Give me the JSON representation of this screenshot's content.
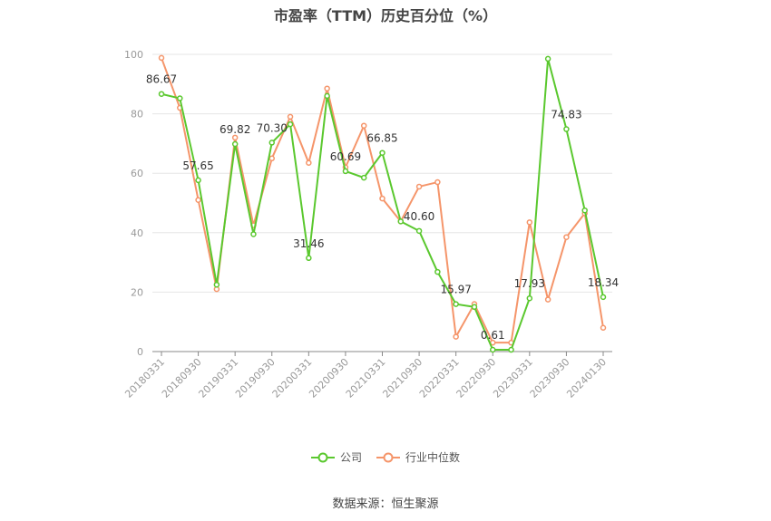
{
  "chart_data": {
    "type": "line",
    "title": "市盈率（TTM）历史百分位（%）",
    "xlabel": "",
    "ylabel": "",
    "ylim": [
      0,
      100
    ],
    "yticks": [
      0,
      20,
      40,
      60,
      80,
      100
    ],
    "grid": true,
    "legend_position": "bottom",
    "x": [
      "20180331",
      "20180630",
      "20180930",
      "20181231",
      "20190331",
      "20190630",
      "20190930",
      "20191231",
      "20200331",
      "20200630",
      "20200930",
      "20201231",
      "20210331",
      "20210630",
      "20210930",
      "20211231",
      "20220331",
      "20220630",
      "20220930",
      "20221231",
      "20230331",
      "20230630",
      "20230930",
      "20231231",
      "20240130"
    ],
    "x_tick_labels": [
      "20180331",
      "20180930",
      "20190331",
      "20190930",
      "20200331",
      "20200930",
      "20210331",
      "20210930",
      "20220331",
      "20220930",
      "20230331",
      "20230930",
      "20240130"
    ],
    "series": [
      {
        "name": "公司",
        "color": "#5ac82e",
        "values": [
          86.67,
          85.2,
          57.65,
          22.5,
          69.82,
          39.5,
          70.3,
          76.5,
          31.46,
          86.0,
          60.69,
          58.5,
          66.85,
          43.8,
          40.6,
          26.8,
          15.97,
          15.0,
          0.61,
          0.6,
          17.93,
          98.5,
          74.83,
          47.5,
          18.34
        ],
        "labels": [
          "86.67",
          "",
          "57.65",
          "",
          "69.82",
          "",
          "70.30",
          "",
          "31.46",
          "",
          "60.69",
          "",
          "66.85",
          "",
          "40.60",
          "",
          "15.97",
          "",
          "0.61",
          "",
          "17.93",
          "",
          "74.83",
          "",
          "18.34"
        ]
      },
      {
        "name": "行业中位数",
        "color": "#f5956a",
        "values": [
          98.8,
          82.0,
          51.0,
          21.0,
          72.0,
          42.5,
          65.0,
          79.0,
          63.5,
          88.5,
          62.0,
          76.0,
          51.5,
          43.8,
          55.5,
          57.0,
          5.0,
          16.0,
          3.0,
          3.0,
          43.5,
          17.5,
          38.5,
          46.5,
          8.0
        ]
      }
    ]
  },
  "source": "数据来源：恒生聚源"
}
